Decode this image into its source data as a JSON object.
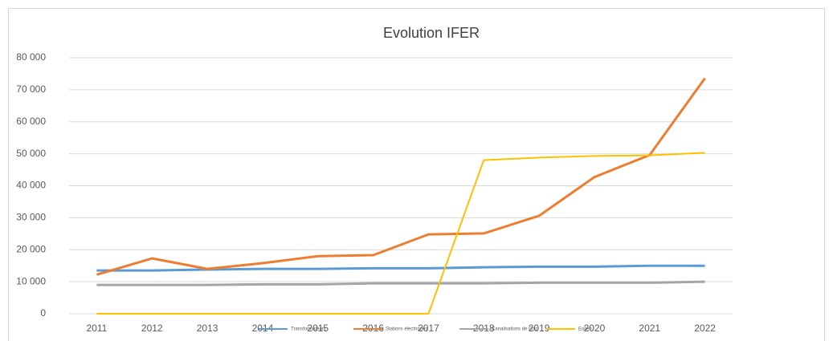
{
  "chart_data": {
    "type": "line",
    "title": "Evolution IFER",
    "categories": [
      "2011",
      "2012",
      "2013",
      "2014",
      "2015",
      "2016",
      "2017",
      "2018",
      "2019",
      "2020",
      "2021",
      "2022"
    ],
    "series": [
      {
        "name": "Transformateurs",
        "color": "#5b9bd5",
        "values": [
          13500,
          13500,
          13800,
          14000,
          14000,
          14200,
          14200,
          14500,
          14700,
          14700,
          15000,
          15000
        ]
      },
      {
        "name": "Stations électriques",
        "color": "#ed7d31",
        "values": [
          12200,
          17300,
          14000,
          15800,
          18000,
          18300,
          24800,
          25100,
          30600,
          42700,
          49600,
          73600
        ]
      },
      {
        "name": "Canalisations de Gaz",
        "color": "#a5a5a5",
        "values": [
          9000,
          9000,
          9000,
          9200,
          9200,
          9500,
          9500,
          9500,
          9700,
          9700,
          9700,
          10000
        ]
      },
      {
        "name": "Eolien",
        "color": "#ffc000",
        "values": [
          0,
          0,
          0,
          0,
          0,
          0,
          0,
          48000,
          48800,
          49300,
          49500,
          50300
        ]
      }
    ],
    "ylim": [
      0,
      80000
    ],
    "yticks": [
      0,
      {
        "value": 10000,
        "label": "10 000"
      },
      {
        "value": 20000,
        "label": "20 000"
      },
      {
        "value": 30000,
        "label": "30 000"
      },
      {
        "value": 40000,
        "label": "40 000"
      },
      {
        "value": 50000,
        "label": "50 000"
      },
      {
        "value": 60000,
        "label": "60 000"
      },
      {
        "value": 70000,
        "label": "70 000"
      },
      {
        "value": 80000,
        "label": "80 000"
      }
    ],
    "grid": true,
    "legend": "bottom"
  }
}
